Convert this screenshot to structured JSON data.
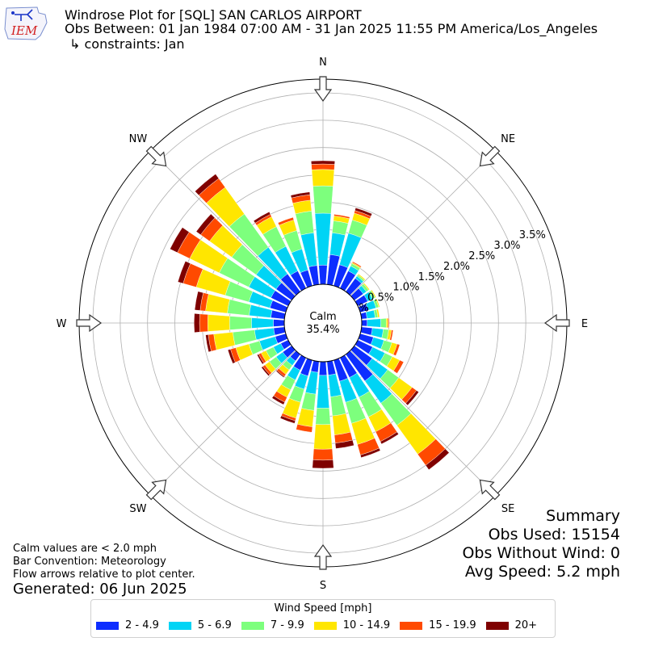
{
  "header": {
    "title": "Windrose Plot for [SQL] SAN CARLOS AIRPORT",
    "subtitle": "Obs Between: 01 Jan 1984 07:00 AM - 31 Jan 2025 11:55 PM America/Los_Angeles",
    "constraints": "↳ constraints: Jan",
    "logo_text": "IEM"
  },
  "footer": {
    "note1": "Calm values are < 2.0 mph",
    "note2": "Bar Convention: Meteorology",
    "note3": "Flow arrows relative to plot center.",
    "generated": "Generated: 06 Jun 2025"
  },
  "summary": {
    "title": "Summary",
    "obs_used": "Obs Used: 15154",
    "obs_without_wind": "Obs Without Wind: 0",
    "avg_speed": "Avg Speed: 5.2 mph"
  },
  "legend": {
    "title": "Wind Speed [mph]"
  },
  "chart_data": {
    "type": "windrose",
    "calm_label": "Calm",
    "calm_value": "35.4%",
    "radial_ticks": [
      "0.0%",
      "0.5%",
      "1.0%",
      "1.5%",
      "2.0%",
      "2.5%",
      "3.0%",
      "3.5%"
    ],
    "radial_max": 3.5,
    "direction_labels": [
      "N",
      "NE",
      "E",
      "SE",
      "S",
      "SW",
      "W",
      "NW"
    ],
    "bins": [
      {
        "name": "2 - 4.9",
        "color": "#0d2dff"
      },
      {
        "name": "5 - 6.9",
        "color": "#00d4f5"
      },
      {
        "name": "7 - 9.9",
        "color": "#7dff7d"
      },
      {
        "name": "10 - 14.9",
        "color": "#ffe600"
      },
      {
        "name": "15 - 19.9",
        "color": "#ff4a00"
      },
      {
        "name": "20+",
        "color": "#7f0000"
      }
    ],
    "directions": [
      {
        "deg": 0,
        "values": [
          0.35,
          0.95,
          0.5,
          0.3,
          0.1,
          0.06
        ]
      },
      {
        "deg": 10,
        "values": [
          0.55,
          0.4,
          0.22,
          0.09,
          0.03,
          0.0
        ]
      },
      {
        "deg": 20,
        "values": [
          0.4,
          0.6,
          0.25,
          0.13,
          0.05,
          0.05
        ]
      },
      {
        "deg": 30,
        "values": [
          0.35,
          0.1,
          0.05,
          0.02,
          0.02,
          0.0
        ]
      },
      {
        "deg": 40,
        "values": [
          0.3,
          0.05,
          0.03,
          0.02,
          0.0,
          0.0
        ]
      },
      {
        "deg": 50,
        "values": [
          0.2,
          0.07,
          0.05,
          0.02,
          0.0,
          0.0
        ]
      },
      {
        "deg": 60,
        "values": [
          0.2,
          0.1,
          0.05,
          0.02,
          0.0,
          0.0
        ]
      },
      {
        "deg": 70,
        "values": [
          0.15,
          0.15,
          0.05,
          0.02,
          0.0,
          0.0
        ]
      },
      {
        "deg": 80,
        "values": [
          0.1,
          0.15,
          0.05,
          0.03,
          0.0,
          0.0
        ]
      },
      {
        "deg": 90,
        "values": [
          0.1,
          0.25,
          0.1,
          0.03,
          0.02,
          0.0
        ]
      },
      {
        "deg": 100,
        "values": [
          0.2,
          0.2,
          0.1,
          0.05,
          0.03,
          0.0
        ]
      },
      {
        "deg": 110,
        "values": [
          0.25,
          0.2,
          0.15,
          0.1,
          0.05,
          0.0
        ]
      },
      {
        "deg": 120,
        "values": [
          0.3,
          0.25,
          0.15,
          0.15,
          0.08,
          0.0
        ]
      },
      {
        "deg": 130,
        "values": [
          0.4,
          0.35,
          0.25,
          0.3,
          0.1,
          0.05
        ]
      },
      {
        "deg": 140,
        "values": [
          0.6,
          0.5,
          0.5,
          0.65,
          0.25,
          0.1
        ]
      },
      {
        "deg": 150,
        "values": [
          0.4,
          0.4,
          0.4,
          0.3,
          0.2,
          0.05
        ]
      },
      {
        "deg": 160,
        "values": [
          0.4,
          0.4,
          0.4,
          0.4,
          0.2,
          0.05
        ]
      },
      {
        "deg": 170,
        "values": [
          0.25,
          0.4,
          0.35,
          0.35,
          0.15,
          0.1
        ]
      },
      {
        "deg": 180,
        "values": [
          0.25,
          0.6,
          0.3,
          0.45,
          0.2,
          0.15
        ]
      },
      {
        "deg": 190,
        "values": [
          0.2,
          0.4,
          0.3,
          0.3,
          0.1,
          0.0
        ]
      },
      {
        "deg": 200,
        "values": [
          0.3,
          0.25,
          0.25,
          0.3,
          0.05,
          0.05
        ]
      },
      {
        "deg": 210,
        "values": [
          0.25,
          0.2,
          0.2,
          0.15,
          0.1,
          0.05
        ]
      },
      {
        "deg": 220,
        "values": [
          0.15,
          0.1,
          0.1,
          0.1,
          0.05,
          0.02
        ]
      },
      {
        "deg": 230,
        "values": [
          0.2,
          0.15,
          0.15,
          0.1,
          0.05,
          0.03
        ]
      },
      {
        "deg": 240,
        "values": [
          0.15,
          0.15,
          0.15,
          0.1,
          0.05,
          0.03
        ]
      },
      {
        "deg": 250,
        "values": [
          0.2,
          0.3,
          0.2,
          0.25,
          0.1,
          0.05
        ]
      },
      {
        "deg": 260,
        "values": [
          0.2,
          0.35,
          0.4,
          0.35,
          0.1,
          0.05
        ]
      },
      {
        "deg": 270,
        "values": [
          0.2,
          0.4,
          0.4,
          0.4,
          0.15,
          0.1
        ]
      },
      {
        "deg": 280,
        "values": [
          0.25,
          0.4,
          0.4,
          0.4,
          0.1,
          0.1
        ]
      },
      {
        "deg": 290,
        "values": [
          0.3,
          0.4,
          0.45,
          0.55,
          0.25,
          0.1
        ]
      },
      {
        "deg": 300,
        "values": [
          0.35,
          0.45,
          0.6,
          0.6,
          0.25,
          0.15
        ]
      },
      {
        "deg": 310,
        "values": [
          0.35,
          0.45,
          0.55,
          0.5,
          0.2,
          0.1
        ]
      },
      {
        "deg": 320,
        "values": [
          0.4,
          0.6,
          0.75,
          0.6,
          0.2,
          0.1
        ]
      },
      {
        "deg": 330,
        "values": [
          0.35,
          0.5,
          0.4,
          0.2,
          0.05,
          0.05
        ]
      },
      {
        "deg": 340,
        "values": [
          0.3,
          0.4,
          0.35,
          0.2,
          0.05,
          0.0
        ]
      },
      {
        "deg": 350,
        "values": [
          0.35,
          0.6,
          0.4,
          0.2,
          0.1,
          0.05
        ]
      }
    ]
  }
}
